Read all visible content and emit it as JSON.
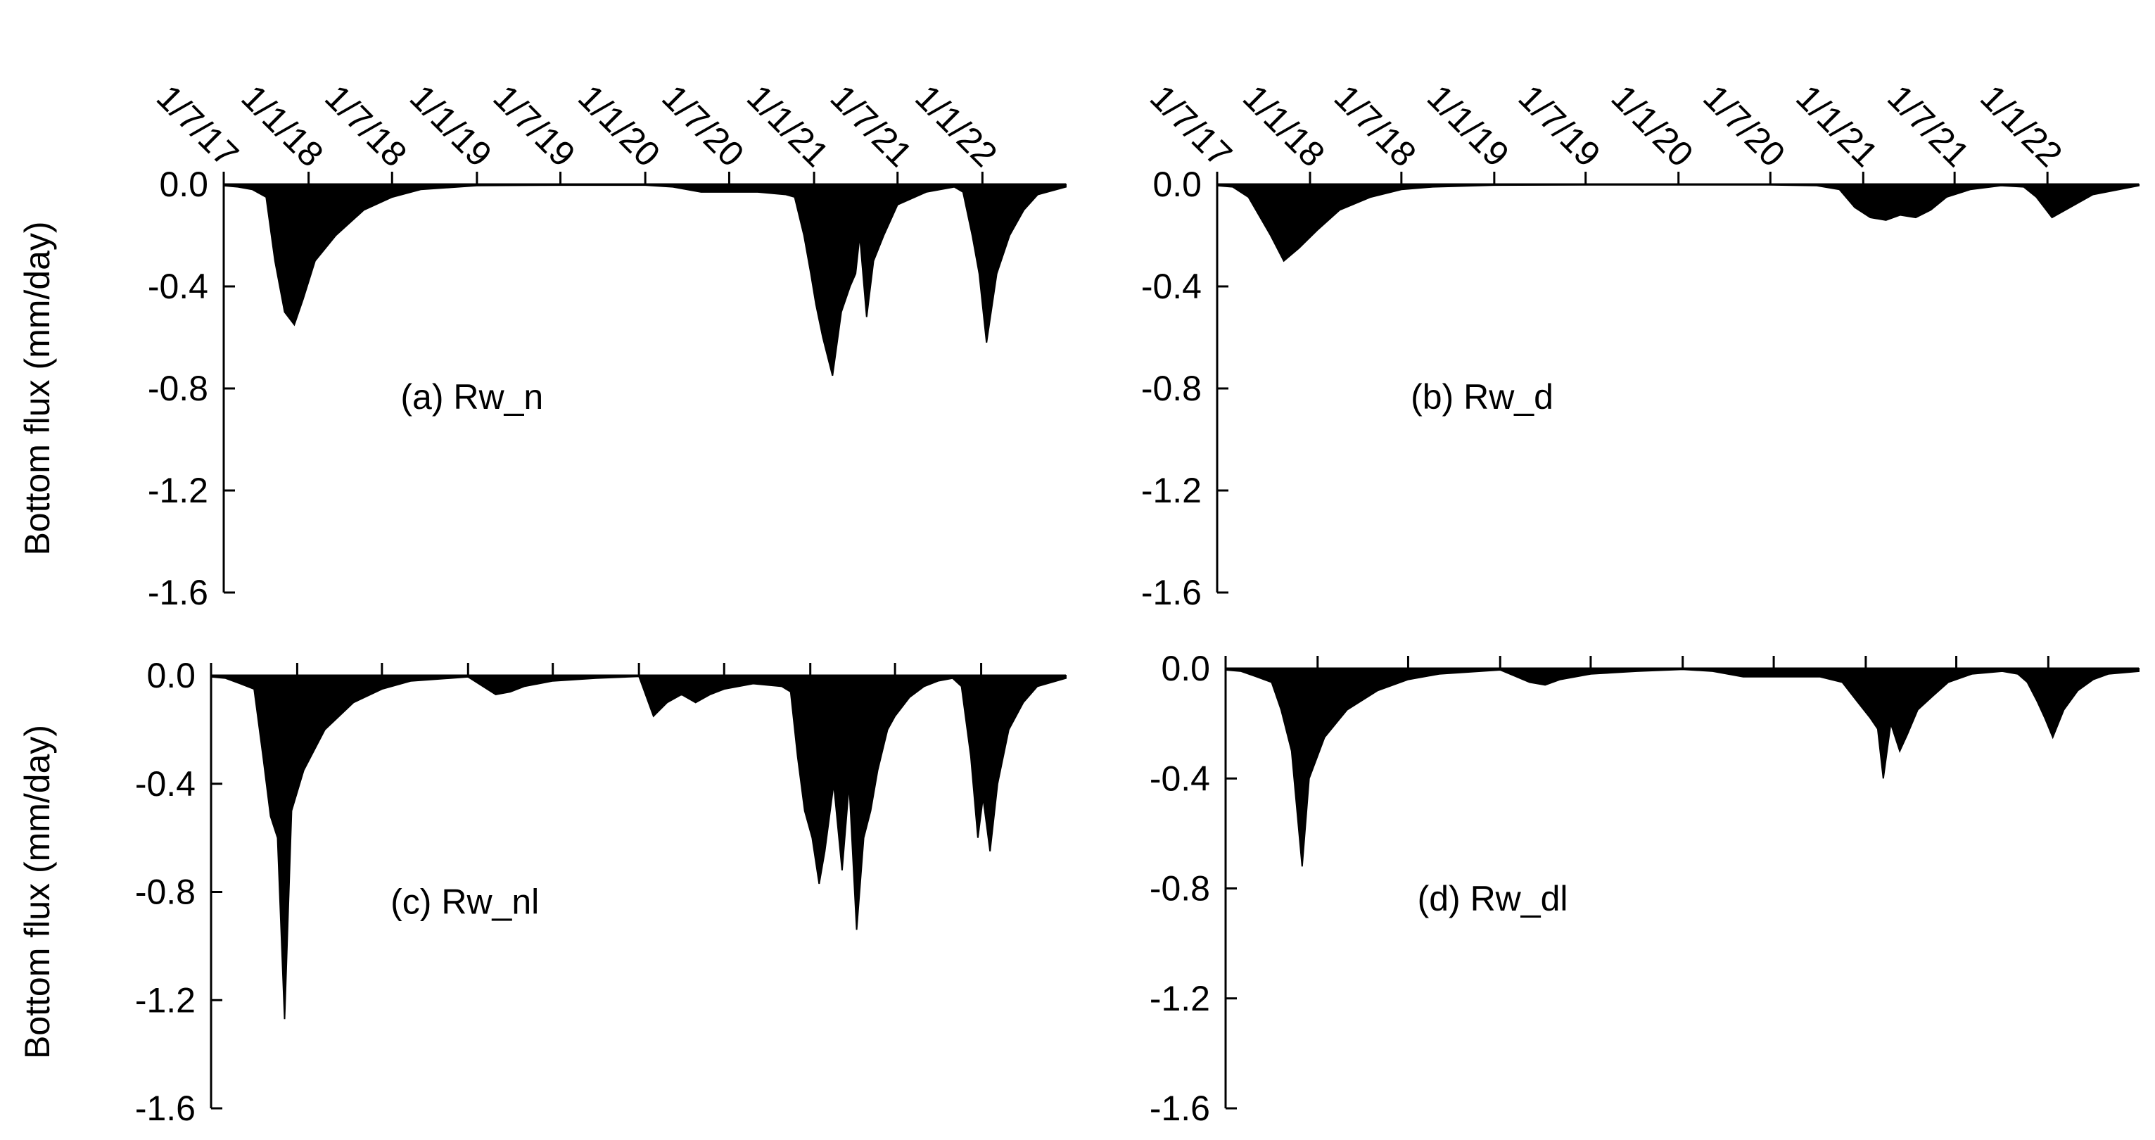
{
  "colors": {
    "fill": "#000000",
    "axis": "#000000",
    "background": "#ffffff"
  },
  "ylabel": "Bottom flux (mm/day)",
  "date_ticks": [
    "1/7/17",
    "1/1/18",
    "1/7/18",
    "1/1/19",
    "1/7/19",
    "1/1/20",
    "1/7/20",
    "1/1/21",
    "1/7/21",
    "1/1/22"
  ],
  "y_ticks": [
    "0.0",
    "-0.4",
    "-0.8",
    "-1.2",
    "-1.6"
  ],
  "chart_data": [
    {
      "type": "area",
      "label": "(a) Rw_n",
      "xlabel": "",
      "ylabel": "Bottom flux (mm/day)",
      "ylim": [
        -1.6,
        0.0
      ],
      "xlim": [
        "2017-07-01",
        "2022-07-01"
      ],
      "x": [
        "2017-07-01",
        "2017-08-01",
        "2017-09-01",
        "2017-10-01",
        "2017-10-20",
        "2017-11-10",
        "2017-12-01",
        "2017-12-20",
        "2018-01-15",
        "2018-03-01",
        "2018-05-01",
        "2018-07-01",
        "2018-09-01",
        "2019-01-01",
        "2019-07-01",
        "2020-01-01",
        "2020-03-01",
        "2020-05-01",
        "2020-07-01",
        "2020-09-01",
        "2020-11-01",
        "2020-11-20",
        "2020-12-10",
        "2020-12-25",
        "2021-01-05",
        "2021-01-20",
        "2021-02-10",
        "2021-03-01",
        "2021-03-20",
        "2021-04-01",
        "2021-04-10",
        "2021-04-25",
        "2021-05-10",
        "2021-06-01",
        "2021-07-01",
        "2021-09-01",
        "2021-11-01",
        "2021-11-20",
        "2021-12-10",
        "2021-12-25",
        "2022-01-10",
        "2022-02-01",
        "2022-03-01",
        "2022-04-01",
        "2022-05-01",
        "2022-07-01"
      ],
      "values": [
        -0.005,
        -0.01,
        -0.02,
        -0.05,
        -0.3,
        -0.5,
        -0.55,
        -0.45,
        -0.3,
        -0.2,
        -0.1,
        -0.05,
        -0.02,
        -0.005,
        -0.003,
        -0.003,
        -0.01,
        -0.03,
        -0.03,
        -0.03,
        -0.04,
        -0.05,
        -0.2,
        -0.35,
        -0.47,
        -0.6,
        -0.75,
        -0.5,
        -0.4,
        -0.35,
        -0.2,
        -0.52,
        -0.3,
        -0.2,
        -0.08,
        -0.03,
        -0.01,
        -0.03,
        -0.2,
        -0.35,
        -0.62,
        -0.35,
        -0.2,
        -0.1,
        -0.04,
        -0.01
      ]
    },
    {
      "type": "area",
      "label": "(b) Rw_d",
      "xlabel": "",
      "ylabel": "",
      "ylim": [
        -1.6,
        0.0
      ],
      "xlim": [
        "2017-07-01",
        "2022-07-01"
      ],
      "x": [
        "2017-07-01",
        "2017-08-01",
        "2017-09-01",
        "2017-10-15",
        "2017-11-10",
        "2017-12-10",
        "2018-01-15",
        "2018-03-01",
        "2018-05-01",
        "2018-07-01",
        "2018-09-01",
        "2019-01-01",
        "2019-07-01",
        "2020-01-01",
        "2020-07-01",
        "2020-10-01",
        "2020-11-15",
        "2020-12-15",
        "2021-01-15",
        "2021-02-15",
        "2021-03-15",
        "2021-04-15",
        "2021-05-15",
        "2021-06-15",
        "2021-08-01",
        "2021-10-01",
        "2021-11-15",
        "2021-12-10",
        "2022-01-10",
        "2022-02-15",
        "2022-04-01",
        "2022-07-01"
      ],
      "values": [
        -0.005,
        -0.01,
        -0.05,
        -0.2,
        -0.3,
        -0.25,
        -0.18,
        -0.1,
        -0.05,
        -0.02,
        -0.01,
        -0.003,
        -0.002,
        -0.002,
        -0.002,
        -0.005,
        -0.02,
        -0.09,
        -0.13,
        -0.14,
        -0.12,
        -0.13,
        -0.1,
        -0.05,
        -0.02,
        -0.005,
        -0.01,
        -0.05,
        -0.13,
        -0.09,
        -0.04,
        -0.005
      ]
    },
    {
      "type": "area",
      "label": "(c) Rw_nl",
      "xlabel": "",
      "ylabel": "Bottom flux (mm/day)",
      "ylim": [
        -1.6,
        0.0
      ],
      "xlim": [
        "2017-07-01",
        "2022-07-01"
      ],
      "x": [
        "2017-07-01",
        "2017-08-01",
        "2017-09-01",
        "2017-10-01",
        "2017-10-20",
        "2017-11-05",
        "2017-11-20",
        "2017-12-05",
        "2017-12-20",
        "2018-01-15",
        "2018-03-01",
        "2018-05-01",
        "2018-07-01",
        "2018-09-01",
        "2019-01-01",
        "2019-03-01",
        "2019-04-01",
        "2019-05-01",
        "2019-07-01",
        "2019-10-01",
        "2020-01-01",
        "2020-02-01",
        "2020-03-01",
        "2020-04-01",
        "2020-05-01",
        "2020-06-01",
        "2020-07-01",
        "2020-09-01",
        "2020-11-01",
        "2020-11-20",
        "2020-12-05",
        "2020-12-20",
        "2021-01-05",
        "2021-01-20",
        "2021-02-01",
        "2021-02-20",
        "2021-03-10",
        "2021-03-25",
        "2021-04-10",
        "2021-04-25",
        "2021-05-10",
        "2021-05-25",
        "2021-06-15",
        "2021-07-01",
        "2021-08-01",
        "2021-09-01",
        "2021-10-01",
        "2021-11-01",
        "2021-11-20",
        "2021-12-10",
        "2021-12-25",
        "2022-01-05",
        "2022-01-20",
        "2022-02-05",
        "2022-03-01",
        "2022-04-01",
        "2022-05-01",
        "2022-07-01"
      ],
      "values": [
        -0.005,
        -0.01,
        -0.03,
        -0.05,
        -0.3,
        -0.52,
        -0.6,
        -1.27,
        -0.5,
        -0.35,
        -0.2,
        -0.1,
        -0.05,
        -0.02,
        -0.005,
        -0.07,
        -0.06,
        -0.04,
        -0.02,
        -0.01,
        -0.003,
        -0.15,
        -0.1,
        -0.07,
        -0.1,
        -0.07,
        -0.05,
        -0.03,
        -0.04,
        -0.06,
        -0.3,
        -0.5,
        -0.6,
        -0.77,
        -0.65,
        -0.4,
        -0.72,
        -0.4,
        -0.94,
        -0.6,
        -0.5,
        -0.35,
        -0.2,
        -0.15,
        -0.08,
        -0.04,
        -0.02,
        -0.01,
        -0.04,
        -0.3,
        -0.6,
        -0.45,
        -0.65,
        -0.4,
        -0.2,
        -0.1,
        -0.04,
        -0.01
      ]
    },
    {
      "type": "area",
      "label": "(d) Rw_dl",
      "xlabel": "",
      "ylabel": "",
      "ylim": [
        -1.6,
        0.0
      ],
      "xlim": [
        "2017-07-01",
        "2022-07-01"
      ],
      "x": [
        "2017-07-01",
        "2017-08-01",
        "2017-09-01",
        "2017-10-01",
        "2017-10-20",
        "2017-11-10",
        "2017-12-01",
        "2017-12-15",
        "2018-01-15",
        "2018-03-01",
        "2018-05-01",
        "2018-07-01",
        "2018-09-01",
        "2019-01-01",
        "2019-03-01",
        "2019-04-01",
        "2019-05-01",
        "2019-07-01",
        "2019-10-01",
        "2020-01-01",
        "2020-03-01",
        "2020-05-01",
        "2020-07-01",
        "2020-10-01",
        "2020-11-15",
        "2020-12-15",
        "2021-01-10",
        "2021-01-25",
        "2021-02-05",
        "2021-02-20",
        "2021-03-10",
        "2021-03-25",
        "2021-04-15",
        "2021-05-15",
        "2021-06-15",
        "2021-08-01",
        "2021-10-01",
        "2021-11-01",
        "2021-11-20",
        "2021-12-10",
        "2021-12-25",
        "2022-01-10",
        "2022-02-01",
        "2022-03-01",
        "2022-04-01",
        "2022-05-01",
        "2022-07-01"
      ],
      "values": [
        -0.005,
        -0.01,
        -0.03,
        -0.05,
        -0.15,
        -0.3,
        -0.72,
        -0.4,
        -0.25,
        -0.15,
        -0.08,
        -0.04,
        -0.02,
        -0.005,
        -0.05,
        -0.06,
        -0.04,
        -0.02,
        -0.01,
        -0.003,
        -0.01,
        -0.03,
        -0.03,
        -0.03,
        -0.05,
        -0.12,
        -0.18,
        -0.22,
        -0.4,
        -0.2,
        -0.3,
        -0.24,
        -0.15,
        -0.1,
        -0.05,
        -0.02,
        -0.01,
        -0.02,
        -0.05,
        -0.12,
        -0.18,
        -0.25,
        -0.15,
        -0.08,
        -0.04,
        -0.02,
        -0.01
      ]
    }
  ]
}
